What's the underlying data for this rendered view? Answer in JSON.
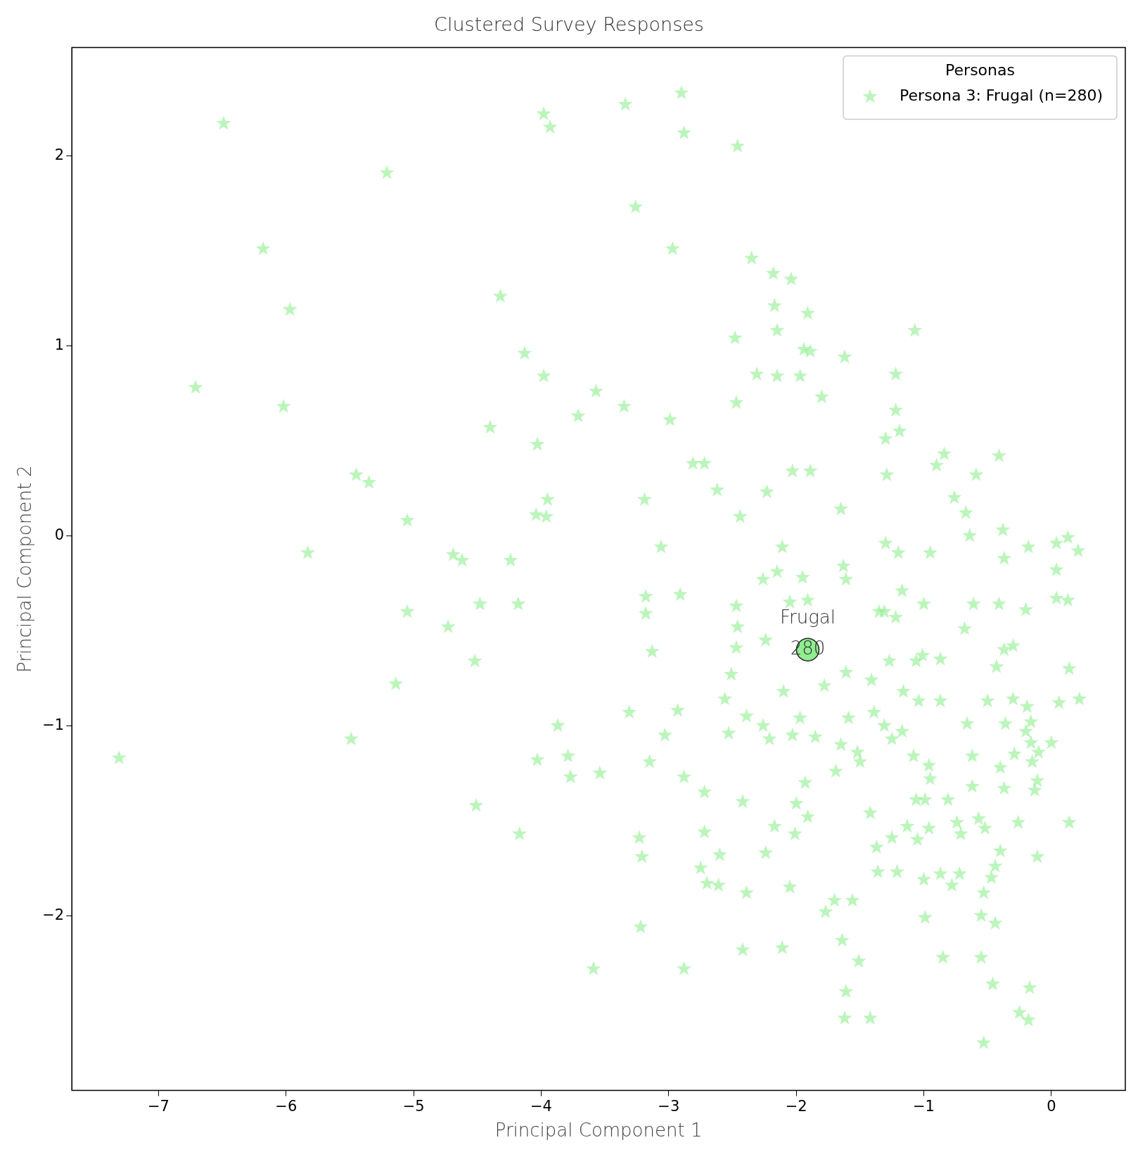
{
  "chart_data": {
    "type": "scatter",
    "title": "Clustered Survey Responses",
    "xlabel": "Principal Component 1",
    "ylabel": "Principal Component 2",
    "legend_title": "Personas",
    "legend": "top right",
    "marker": "star",
    "grid": false,
    "xlim": [
      -7.68,
      0.58
    ],
    "ylim": [
      -2.92,
      2.57
    ],
    "xticks": [
      {
        "value": -7,
        "label": "−7"
      },
      {
        "value": -6,
        "label": "−6"
      },
      {
        "value": -5,
        "label": "−5"
      },
      {
        "value": -4,
        "label": "−4"
      },
      {
        "value": -3,
        "label": "−3"
      },
      {
        "value": -2,
        "label": "−2"
      },
      {
        "value": -1,
        "label": "−1"
      },
      0
    ],
    "yticks": [
      {
        "value": -2,
        "label": "−2"
      },
      {
        "value": -1,
        "label": "−1"
      },
      0,
      1,
      2
    ],
    "annotations": [
      "Frugal",
      {
        "text": "280",
        "x": -1.91,
        "y": -0.6
      }
    ],
    "series": [
      {
        "name": "Persona 3: Frugal (n=280)",
        "color": "#90ee90",
        "x": [
          -6.49,
          -5.21,
          -6.18,
          -5.97,
          -6.71,
          -6.02,
          -5.83,
          -5.45,
          -5.35,
          -5.05,
          -5.05,
          -5.14,
          -5.49,
          -7.31,
          -3.98,
          -3.93,
          -3.34,
          -2.9,
          -2.88,
          -2.46,
          -3.26,
          -2.97,
          -4.32,
          -4.13,
          -3.98,
          -4.03,
          -4.4,
          -3.71,
          -3.57,
          -3.35,
          -2.99,
          -2.81,
          -2.72,
          -2.62,
          -2.44,
          -3.95,
          -3.96,
          -4.04,
          -3.19,
          -3.06,
          -3.18,
          -3.18,
          -3.13,
          -2.91,
          -4.69,
          -4.62,
          -4.24,
          -4.18,
          -4.48,
          -4.73,
          -4.52,
          -3.87,
          -4.03,
          -3.79,
          -3.77,
          -3.54,
          -4.51,
          -4.17,
          -3.31,
          -2.93,
          -3.03,
          -3.15,
          -2.88,
          -2.72,
          -2.72,
          -3.23,
          -3.21,
          -3.22,
          -3.59,
          -2.88,
          -2.75,
          -2.7,
          -2.6,
          -2.61,
          -2.39,
          -2.42,
          -2.42,
          -2.56,
          -2.53,
          -2.51,
          -2.47,
          -2.47,
          -2.46,
          -2.39,
          -2.35,
          -2.18,
          -2.04,
          -2.17,
          -1.91,
          -2.15,
          -2.48,
          -2.31,
          -2.15,
          -1.97,
          -1.94,
          -1.89,
          -1.8,
          -2.47,
          -2.03,
          -1.89,
          -2.23,
          -2.11,
          -2.15,
          -2.26,
          -1.95,
          -2.05,
          -1.91,
          -2.24,
          -2.1,
          -1.97,
          -2.26,
          -2.21,
          -2.03,
          -1.93,
          -1.91,
          -2.0,
          -2.17,
          -2.01,
          -2.24,
          -2.05,
          -2.11,
          -1.85,
          -1.78,
          -1.69,
          -1.77,
          -1.7,
          -1.65,
          -1.59,
          -1.61,
          -1.63,
          -1.61,
          -1.65,
          -1.62,
          -1.56,
          -1.64,
          -1.61,
          -1.62,
          -1.51,
          -1.52,
          -1.5,
          -1.42,
          -1.42,
          -1.37,
          -1.36,
          -1.39,
          -1.41,
          -1.35,
          -1.31,
          -1.3,
          -1.29,
          -1.3,
          -1.22,
          -1.22,
          -1.19,
          -1.2,
          -1.22,
          -1.17,
          -1.27,
          -1.16,
          -1.31,
          -1.17,
          -1.25,
          -1.25,
          -1.21,
          -1.13,
          -1.08,
          -1.06,
          -1.05,
          -1.04,
          -1.06,
          -1.01,
          -1.07,
          -1.0,
          -0.95,
          -0.9,
          -0.84,
          -0.76,
          -0.67,
          -0.64,
          -0.59,
          -0.61,
          -0.68,
          -0.87,
          -0.87,
          -0.99,
          -0.95,
          -0.96,
          -0.96,
          -1.0,
          -0.99,
          -0.87,
          -0.85,
          -0.78,
          -0.81,
          -0.74,
          -0.71,
          -0.72,
          -0.66,
          -0.62,
          -0.62,
          -0.55,
          -0.55,
          -0.53,
          -0.47,
          -0.44,
          -0.44,
          -0.46,
          -0.53,
          -0.57,
          -0.52,
          -0.5,
          -0.41,
          -0.38,
          -0.37,
          -0.41,
          -0.43,
          -0.37,
          -0.3,
          -0.36,
          -0.4,
          -0.37,
          -0.4,
          -0.29,
          -0.3,
          -0.26,
          -0.25,
          -0.18,
          -0.17,
          -0.2,
          -0.18,
          -0.19,
          -0.16,
          -0.2,
          -0.13,
          -0.11,
          -0.1,
          -0.16,
          0.0,
          0.06,
          0.04,
          0.04,
          0.04,
          0.13,
          0.13,
          0.14,
          0.22,
          0.21,
          0.14,
          -0.11,
          -0.15
        ],
        "values": [
          2.17,
          1.91,
          1.51,
          1.19,
          0.78,
          0.68,
          -0.09,
          0.32,
          0.28,
          0.08,
          -0.4,
          -0.78,
          -1.07,
          -1.17,
          2.22,
          2.15,
          2.27,
          2.33,
          2.12,
          2.05,
          1.73,
          1.51,
          1.26,
          0.96,
          0.84,
          0.48,
          0.57,
          0.63,
          0.76,
          0.68,
          0.61,
          0.38,
          0.38,
          0.24,
          0.1,
          0.19,
          0.1,
          0.11,
          0.19,
          -0.06,
          -0.32,
          -0.41,
          -0.61,
          -0.31,
          -0.1,
          -0.13,
          -0.13,
          -0.36,
          -0.36,
          -0.48,
          -0.66,
          -1.0,
          -1.18,
          -1.16,
          -1.27,
          -1.25,
          -1.42,
          -1.57,
          -0.93,
          -0.92,
          -1.05,
          -1.19,
          -1.27,
          -1.35,
          -1.56,
          -1.59,
          -1.69,
          -2.06,
          -2.28,
          -2.28,
          -1.75,
          -1.83,
          -1.68,
          -1.84,
          -1.88,
          -2.18,
          -1.4,
          -0.86,
          -1.04,
          -0.73,
          -0.59,
          -0.37,
          -0.48,
          -0.95,
          1.46,
          1.38,
          1.35,
          1.21,
          1.17,
          1.08,
          1.04,
          0.85,
          0.84,
          0.84,
          0.98,
          0.97,
          0.73,
          0.7,
          0.34,
          0.34,
          0.23,
          -0.06,
          -0.19,
          -0.23,
          -0.22,
          -0.35,
          -0.34,
          -0.55,
          -0.82,
          -0.96,
          -1.0,
          -1.07,
          -1.05,
          -1.3,
          -1.48,
          -1.41,
          -1.53,
          -1.57,
          -1.67,
          -1.85,
          -2.17,
          -1.06,
          -0.79,
          -1.24,
          -1.98,
          -1.92,
          -1.1,
          -0.96,
          -0.72,
          -0.16,
          -0.23,
          0.14,
          0.94,
          -1.92,
          -2.13,
          -2.4,
          -2.54,
          -2.24,
          -1.14,
          -1.19,
          -1.46,
          -2.54,
          -1.64,
          -1.77,
          -0.93,
          -0.76,
          -0.4,
          -0.4,
          -0.04,
          0.32,
          0.51,
          0.85,
          0.66,
          0.55,
          -0.09,
          -0.43,
          -0.29,
          -0.66,
          -0.82,
          -1.0,
          -1.03,
          -1.07,
          -1.59,
          -1.77,
          -1.53,
          -1.16,
          -1.39,
          -1.6,
          -0.87,
          -0.66,
          -0.63,
          1.08,
          -0.36,
          -0.09,
          0.37,
          0.43,
          0.2,
          0.12,
          0.0,
          0.32,
          -0.36,
          -0.49,
          -0.65,
          -0.87,
          -1.39,
          -1.28,
          -1.21,
          -1.54,
          -1.81,
          -2.01,
          -1.78,
          -2.22,
          -1.84,
          -1.39,
          -1.51,
          -1.57,
          -1.78,
          -0.99,
          -1.16,
          -1.32,
          -2.22,
          -2.0,
          -1.88,
          -1.8,
          -1.74,
          -2.04,
          -2.36,
          -2.67,
          -1.49,
          -1.54,
          -0.87,
          0.42,
          0.03,
          -0.12,
          -0.36,
          -0.69,
          -0.6,
          -0.58,
          -0.99,
          -1.22,
          -1.33,
          -1.66,
          -1.15,
          -0.86,
          -1.51,
          -2.51,
          -2.55,
          -2.38,
          -0.39,
          -0.06,
          -0.9,
          -0.98,
          -1.03,
          -1.34,
          -1.29,
          -1.14,
          -1.09,
          -1.09,
          -0.88,
          -0.04,
          -0.18,
          -0.33,
          -0.01,
          -0.34,
          -0.7,
          -0.86,
          -0.08,
          -1.51,
          -1.69,
          -1.19
        ]
      },
      {
        "color": "#90ee90",
        "marker": "circle",
        "x": [
          -1.91
        ],
        "values": [
          -0.6
        ]
      }
    ]
  }
}
